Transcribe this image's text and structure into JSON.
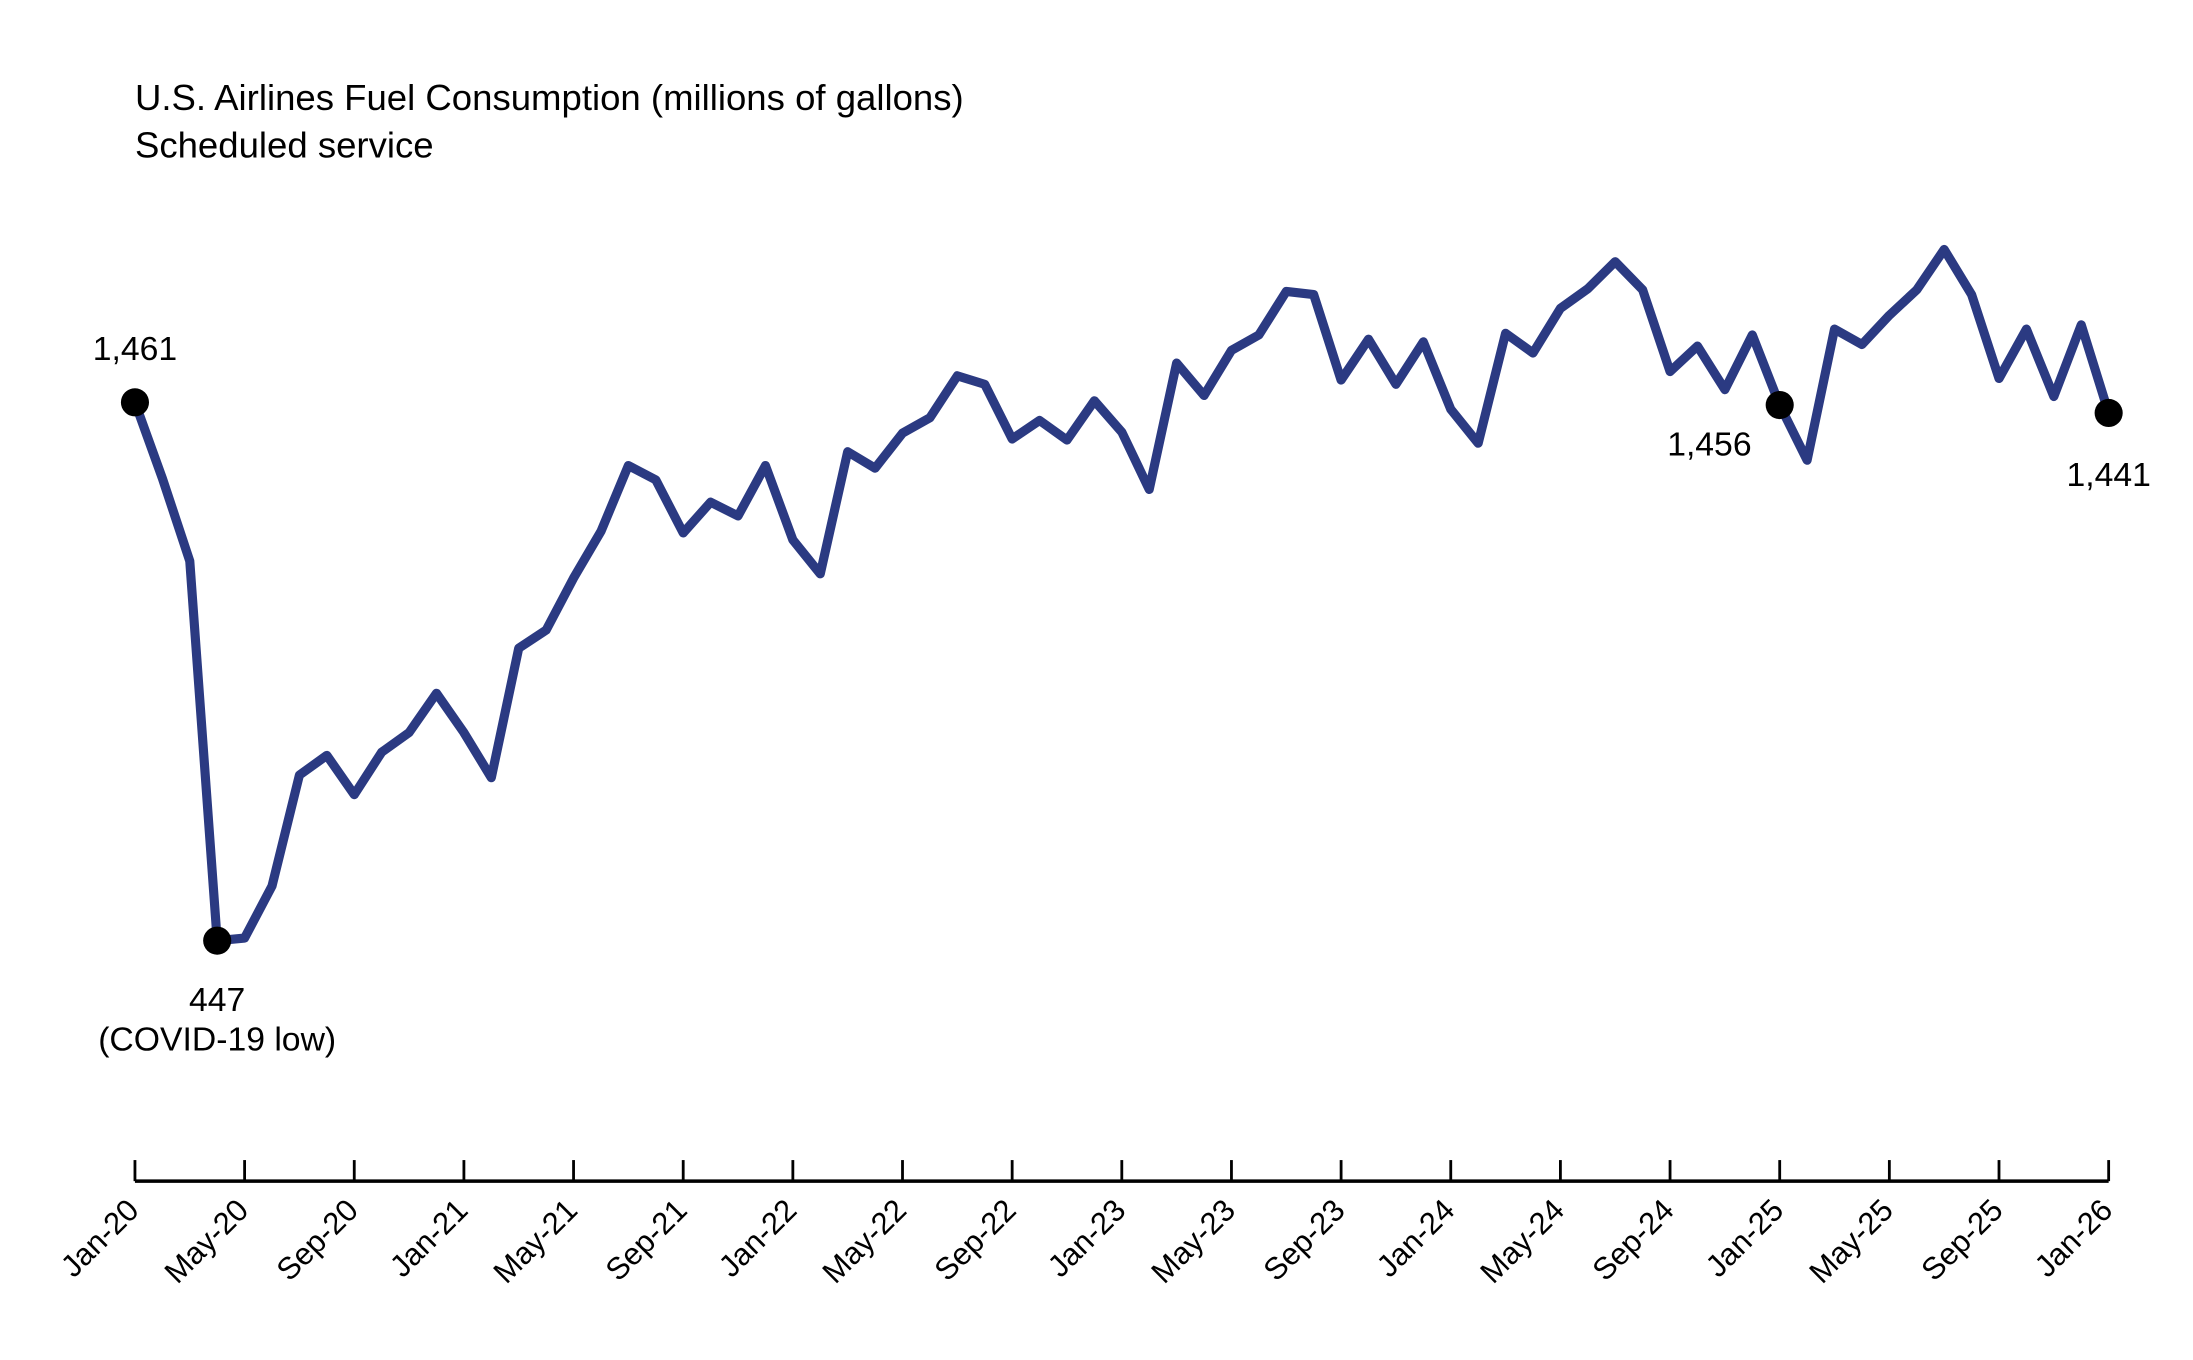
{
  "chart_data": {
    "type": "line",
    "title": "U.S. Airlines Fuel Consumption (millions of gallons)",
    "subtitle": "Scheduled service",
    "xlabel": "",
    "ylabel": "",
    "grid": false,
    "line_color": "#2b3a82",
    "x_start": "Jan-20",
    "x_end": "Jan-26",
    "tick_labels": [
      "Jan-20",
      "May-20",
      "Sep-20",
      "Jan-21",
      "May-21",
      "Sep-21",
      "Jan-22",
      "May-22",
      "Sep-22",
      "Jan-23",
      "May-23",
      "Sep-23",
      "Jan-24",
      "May-24",
      "Sep-24",
      "Jan-25",
      "May-25",
      "Sep-25",
      "Jan-26"
    ],
    "values": [
      1461,
      1318,
      1162,
      447,
      452,
      550,
      759,
      796,
      722,
      802,
      839,
      913,
      839,
      754,
      998,
      1032,
      1130,
      1218,
      1342,
      1315,
      1215,
      1273,
      1247,
      1342,
      1202,
      1138,
      1368,
      1337,
      1403,
      1432,
      1511,
      1495,
      1392,
      1427,
      1390,
      1464,
      1405,
      1297,
      1535,
      1474,
      1559,
      1588,
      1670,
      1664,
      1503,
      1580,
      1495,
      1575,
      1448,
      1384,
      1591,
      1554,
      1638,
      1675,
      1726,
      1673,
      1519,
      1567,
      1485,
      1588,
      1456,
      1352,
      1599,
      1570,
      1625,
      1673,
      1749,
      1664,
      1506,
      1599,
      1472,
      1607,
      1441
    ],
    "annotations": [
      {
        "month": "Jan-20",
        "label": "1,461"
      },
      {
        "month": "Apr-20",
        "label": "447",
        "note": "(COVID-19 low)"
      },
      {
        "month": "Jan-25",
        "label": "1,456"
      },
      {
        "month": "Jan-26",
        "label": "1,441"
      }
    ]
  }
}
